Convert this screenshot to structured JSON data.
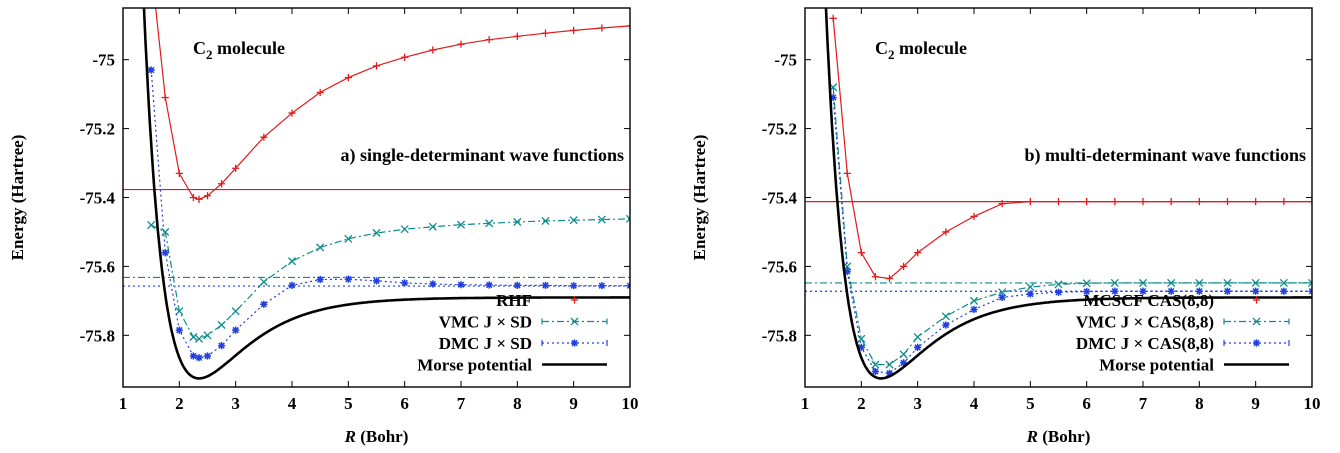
{
  "chart_data": [
    {
      "type": "line",
      "title": "",
      "annotation_molecule": "C",
      "annotation_molecule_sub": "2",
      "annotation_molecule_rest": " molecule",
      "annotation_panel": "a) single-determinant wave functions",
      "xlabel_italic": "R",
      "xlabel_rest": " (Bohr)",
      "ylabel": "Energy (Hartree)",
      "xlim": [
        1,
        10
      ],
      "ylim": [
        -75.95,
        -74.85
      ],
      "xticks": [
        "1",
        "2",
        "3",
        "4",
        "5",
        "6",
        "7",
        "8",
        "9",
        "10"
      ],
      "yticks": [
        "-75",
        "-75.2",
        "-75.4",
        "-75.6",
        "-75.8"
      ],
      "legend_position": "bottom-right",
      "reference_lines": [
        {
          "y": -75.377,
          "color": "#e41a1c",
          "style": "solid"
        },
        {
          "y": -75.632,
          "color": "#0f8b8d",
          "style": "dashdot"
        },
        {
          "y": -75.657,
          "color": "#1f3fe0",
          "style": "dotted"
        }
      ],
      "series": [
        {
          "name": "RHF",
          "color": "#e41a1c",
          "marker": "plus",
          "line": "solid",
          "x": [
            1.5,
            1.75,
            2.0,
            2.25,
            2.35,
            2.5,
            2.75,
            3.0,
            3.5,
            4.0,
            4.5,
            5.0,
            5.5,
            6.0,
            6.5,
            7.0,
            7.5,
            8.0,
            8.5,
            9.0,
            9.5,
            10.0
          ],
          "y": [
            -74.73,
            -75.11,
            -75.33,
            -75.4,
            -75.405,
            -75.395,
            -75.36,
            -75.315,
            -75.225,
            -75.155,
            -75.095,
            -75.052,
            -75.018,
            -74.993,
            -74.972,
            -74.955,
            -74.942,
            -74.932,
            -74.923,
            -74.915,
            -74.908,
            -74.902
          ]
        },
        {
          "name": "VMC J × SD",
          "color": "#0f8b8d",
          "marker": "x",
          "line": "dashdot",
          "x": [
            1.5,
            1.75,
            2.0,
            2.25,
            2.35,
            2.5,
            2.75,
            3.0,
            3.5,
            4.0,
            4.5,
            5.0,
            5.5,
            6.0,
            6.5,
            7.0,
            7.5,
            8.0,
            8.5,
            9.0,
            9.5,
            10.0
          ],
          "y": [
            -75.48,
            -75.5,
            -75.73,
            -75.805,
            -75.81,
            -75.8,
            -75.77,
            -75.73,
            -75.645,
            -75.585,
            -75.545,
            -75.52,
            -75.503,
            -75.492,
            -75.485,
            -75.479,
            -75.475,
            -75.471,
            -75.468,
            -75.466,
            -75.464,
            -75.462
          ]
        },
        {
          "name": "DMC J × SD",
          "color": "#1f3fe0",
          "marker": "star",
          "line": "dotted",
          "x": [
            1.5,
            1.75,
            2.0,
            2.25,
            2.35,
            2.5,
            2.75,
            3.0,
            3.5,
            4.0,
            4.5,
            5.0,
            5.5,
            6.0,
            6.5,
            7.0,
            7.5,
            8.0,
            8.5,
            9.0,
            9.5,
            10.0
          ],
          "y": [
            -75.03,
            -75.56,
            -75.785,
            -75.86,
            -75.865,
            -75.86,
            -75.83,
            -75.785,
            -75.71,
            -75.655,
            -75.638,
            -75.637,
            -75.642,
            -75.648,
            -75.651,
            -75.653,
            -75.654,
            -75.655,
            -75.655,
            -75.656,
            -75.656,
            -75.656
          ]
        },
        {
          "name": "Morse potential",
          "color": "#000000",
          "marker": "none",
          "line": "thick",
          "morse": {
            "De": 0.235,
            "a": 1.17,
            "Re": 2.35,
            "Einf": -75.69
          }
        }
      ]
    },
    {
      "type": "line",
      "title": "",
      "annotation_molecule": "C",
      "annotation_molecule_sub": "2",
      "annotation_molecule_rest": " molecule",
      "annotation_panel": "b) multi-determinant wave functions",
      "xlabel_italic": "R",
      "xlabel_rest": " (Bohr)",
      "ylabel": "Energy (Hartree)",
      "xlim": [
        1,
        10
      ],
      "ylim": [
        -75.95,
        -74.85
      ],
      "xticks": [
        "1",
        "2",
        "3",
        "4",
        "5",
        "6",
        "7",
        "8",
        "9",
        "10"
      ],
      "yticks": [
        "-75",
        "-75.2",
        "-75.4",
        "-75.6",
        "-75.8"
      ],
      "legend_position": "bottom-right",
      "reference_lines": [
        {
          "y": -75.412,
          "color": "#e41a1c",
          "style": "solid"
        },
        {
          "y": -75.648,
          "color": "#0f8b8d",
          "style": "dashdot"
        },
        {
          "y": -75.672,
          "color": "#1f3fe0",
          "style": "dotted"
        }
      ],
      "series": [
        {
          "name": "MCSCF CAS(8,8)",
          "color": "#e41a1c",
          "marker": "plus",
          "line": "solid",
          "x": [
            1.5,
            1.75,
            2.0,
            2.25,
            2.5,
            2.75,
            3.0,
            3.5,
            4.0,
            4.5,
            5.0,
            5.5,
            6.0,
            6.5,
            7.0,
            7.5,
            8.0,
            8.5,
            9.0,
            9.5,
            10.0
          ],
          "y": [
            -74.88,
            -75.33,
            -75.56,
            -75.63,
            -75.635,
            -75.6,
            -75.56,
            -75.5,
            -75.455,
            -75.418,
            -75.412,
            -75.412,
            -75.412,
            -75.412,
            -75.412,
            -75.412,
            -75.412,
            -75.412,
            -75.412,
            -75.412,
            -75.412
          ]
        },
        {
          "name": "VMC J × CAS(8,8)",
          "color": "#0f8b8d",
          "marker": "x",
          "line": "dashdot",
          "x": [
            1.5,
            1.75,
            2.0,
            2.25,
            2.5,
            2.75,
            3.0,
            3.5,
            4.0,
            4.5,
            5.0,
            5.5,
            6.0,
            6.5,
            7.0,
            7.5,
            8.0,
            8.5,
            9.0,
            9.5,
            10.0
          ],
          "y": [
            -75.08,
            -75.6,
            -75.81,
            -75.885,
            -75.885,
            -75.855,
            -75.805,
            -75.745,
            -75.7,
            -75.675,
            -75.66,
            -75.652,
            -75.649,
            -75.648,
            -75.648,
            -75.648,
            -75.648,
            -75.648,
            -75.648,
            -75.648,
            -75.648
          ]
        },
        {
          "name": "DMC J × CAS(8,8)",
          "color": "#1f3fe0",
          "marker": "star",
          "line": "dotted",
          "x": [
            1.5,
            1.75,
            2.0,
            2.25,
            2.5,
            2.75,
            3.0,
            3.5,
            4.0,
            4.5,
            5.0,
            5.5,
            6.0,
            6.5,
            7.0,
            7.5,
            8.0,
            8.5,
            9.0,
            9.5,
            10.0
          ],
          "y": [
            -75.11,
            -75.615,
            -75.835,
            -75.905,
            -75.91,
            -75.88,
            -75.835,
            -75.77,
            -75.725,
            -75.69,
            -75.68,
            -75.675,
            -75.673,
            -75.672,
            -75.672,
            -75.672,
            -75.672,
            -75.672,
            -75.672,
            -75.672,
            -75.672
          ]
        },
        {
          "name": "Morse potential",
          "color": "#000000",
          "marker": "none",
          "line": "thick",
          "morse": {
            "De": 0.235,
            "a": 1.17,
            "Re": 2.35,
            "Einf": -75.69
          }
        }
      ]
    }
  ]
}
